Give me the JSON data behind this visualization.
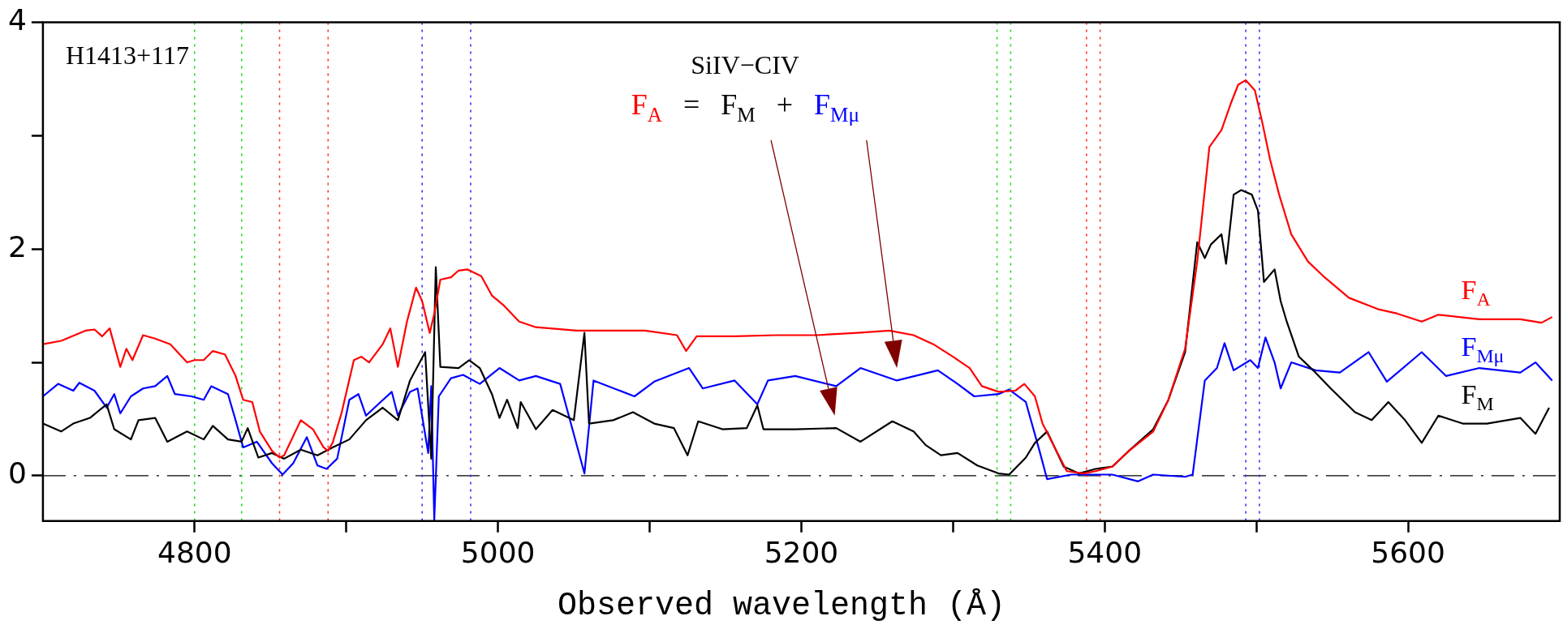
{
  "chart_data": {
    "type": "line",
    "xlabel": "Observed wavelength (Å)",
    "xlim": [
      4700,
      5700
    ],
    "ylim": [
      -0.4,
      4
    ],
    "xticks": [
      4800,
      {
        "value": 4900,
        "label": null
      },
      5000,
      {
        "value": 5100,
        "label": null
      },
      5200,
      {
        "value": 5300,
        "label": null
      },
      5400,
      {
        "value": 5500,
        "label": null
      },
      5600
    ],
    "yticks": [
      0,
      {
        "value": 1,
        "label": null
      },
      2,
      {
        "value": 3,
        "label": null
      },
      4
    ],
    "marker": "none",
    "legend": false,
    "annotations": [
      "H1413+117",
      "SiIV−CIV",
      "F$_{A}$ = F$_{M}$ + F$_{Mμ}$"
    ],
    "ref_lines": [
      {
        "axis": "y",
        "value": 0,
        "color": "#000000",
        "line_style": "dashed"
      },
      {
        "axis": "x",
        "value": 4800,
        "color": "#22dd22",
        "line_style": "dotted"
      },
      {
        "axis": "x",
        "value": 4831,
        "color": "#22dd22",
        "line_style": "dotted"
      },
      {
        "axis": "x",
        "value": 4856,
        "color": "#ff3333",
        "line_style": "dotted"
      },
      {
        "axis": "x",
        "value": 4888,
        "color": "#ff3333",
        "line_style": "dotted"
      },
      {
        "axis": "x",
        "value": 4950,
        "color": "#3333ff",
        "line_style": "dotted"
      },
      {
        "axis": "x",
        "value": 4982,
        "color": "#3333ff",
        "line_style": "dotted"
      },
      {
        "axis": "x",
        "value": 5329,
        "color": "#22dd22",
        "line_style": "dotted"
      },
      {
        "axis": "x",
        "value": 5338,
        "color": "#22dd22",
        "line_style": "dotted"
      },
      {
        "axis": "x",
        "value": 5388,
        "color": "#ff3333",
        "line_style": "dotted"
      },
      {
        "axis": "x",
        "value": 5397,
        "color": "#ff3333",
        "line_style": "dotted"
      },
      {
        "axis": "x",
        "value": 5493,
        "color": "#3333ff",
        "line_style": "dotted"
      },
      {
        "axis": "x",
        "value": 5502,
        "color": "#3333ff",
        "line_style": "dotted"
      }
    ],
    "series": [
      {
        "name": "F$_{A}$",
        "color": "#ff0000",
        "x": [
          4700,
          4712,
          4728,
          4734,
          4739,
          4744,
          4751,
          4755,
          4759,
          4766,
          4774,
          4784,
          4795,
          4800,
          4806,
          4812,
          4820,
          4827,
          4832,
          4838,
          4843,
          4851,
          4856,
          4859,
          4870,
          4878,
          4885,
          4888,
          4891,
          4897,
          4905,
          4910,
          4915,
          4924,
          4929,
          4934,
          4940,
          4946,
          4950,
          4955,
          4958,
          4962,
          4969,
          4974,
          4980,
          4989,
          4996,
          5004,
          5014,
          5025,
          5052,
          5076,
          5097,
          5118,
          5124,
          5131,
          5156,
          5183,
          5210,
          5237,
          5258,
          5274,
          5287,
          5300,
          5311,
          5319,
          5330,
          5341,
          5347,
          5354,
          5359,
          5367,
          5375,
          5386,
          5394,
          5405,
          5416,
          5432,
          5442,
          5453,
          5461,
          5469,
          5477,
          5483,
          5488,
          5493,
          5499,
          5504,
          5509,
          5515,
          5523,
          5534,
          5545,
          5561,
          5580,
          5593,
          5609,
          5620,
          5647,
          5674,
          5688,
          5695
        ],
        "values": [
          1.16,
          1.19,
          1.28,
          1.29,
          1.23,
          1.3,
          0.96,
          1.12,
          1.02,
          1.24,
          1.21,
          1.16,
          1.0,
          1.02,
          1.02,
          1.1,
          1.07,
          0.88,
          0.67,
          0.65,
          0.39,
          0.22,
          0.16,
          0.18,
          0.49,
          0.41,
          0.25,
          0.22,
          0.29,
          0.56,
          1.02,
          1.05,
          1.0,
          1.16,
          1.3,
          0.96,
          1.36,
          1.66,
          1.54,
          1.26,
          1.43,
          1.73,
          1.75,
          1.81,
          1.82,
          1.76,
          1.59,
          1.5,
          1.36,
          1.31,
          1.28,
          1.28,
          1.28,
          1.24,
          1.1,
          1.23,
          1.23,
          1.24,
          1.24,
          1.26,
          1.28,
          1.24,
          1.16,
          1.05,
          0.95,
          0.79,
          0.74,
          0.75,
          0.81,
          0.7,
          0.46,
          0.25,
          0.04,
          0.02,
          0.04,
          0.08,
          0.22,
          0.39,
          0.67,
          1.12,
          1.89,
          2.9,
          3.05,
          3.28,
          3.45,
          3.49,
          3.4,
          3.11,
          2.79,
          2.48,
          2.13,
          1.89,
          1.75,
          1.57,
          1.47,
          1.43,
          1.36,
          1.42,
          1.38,
          1.38,
          1.35,
          1.4
        ]
      },
      {
        "name": "F$_{M}$",
        "color": "#000000",
        "x": [
          4700,
          4712,
          4720,
          4731,
          4742,
          4747,
          4758,
          4763,
          4774,
          4782,
          4795,
          4806,
          4812,
          4822,
          4831,
          4835,
          4842,
          4851,
          4859,
          4870,
          4881,
          4891,
          4902,
          4913,
          4924,
          4934,
          4942,
          4952,
          4956,
          4959,
          4962,
          4974,
          4981,
          4988,
          4996,
          5001,
          5006,
          5013,
          5015,
          5025,
          5036,
          5050,
          5057,
          5060,
          5076,
          5089,
          5103,
          5116,
          5125,
          5132,
          5148,
          5164,
          5171,
          5175,
          5196,
          5223,
          5239,
          5260,
          5274,
          5282,
          5292,
          5303,
          5316,
          5330,
          5337,
          5348,
          5354,
          5362,
          5373,
          5383,
          5394,
          5405,
          5416,
          5432,
          5442,
          5453,
          5461,
          5466,
          5470,
          5477,
          5480,
          5485,
          5490,
          5497,
          5501,
          5505,
          5512,
          5516,
          5520,
          5528,
          5539,
          5549,
          5565,
          5576,
          5587,
          5598,
          5609,
          5620,
          5636,
          5652,
          5674,
          5684,
          5693
        ],
        "values": [
          0.46,
          0.39,
          0.46,
          0.51,
          0.63,
          0.41,
          0.32,
          0.49,
          0.51,
          0.3,
          0.39,
          0.32,
          0.44,
          0.32,
          0.3,
          0.42,
          0.16,
          0.2,
          0.15,
          0.23,
          0.18,
          0.25,
          0.32,
          0.49,
          0.6,
          0.49,
          0.84,
          1.09,
          0.15,
          1.84,
          0.96,
          0.95,
          1.02,
          0.95,
          0.72,
          0.51,
          0.67,
          0.42,
          0.65,
          0.41,
          0.58,
          0.49,
          1.26,
          0.46,
          0.49,
          0.56,
          0.46,
          0.42,
          0.18,
          0.48,
          0.41,
          0.42,
          0.62,
          0.41,
          0.41,
          0.42,
          0.3,
          0.48,
          0.39,
          0.27,
          0.18,
          0.2,
          0.09,
          0.02,
          0.01,
          0.16,
          0.29,
          0.39,
          0.08,
          0.02,
          0.06,
          0.08,
          0.22,
          0.41,
          0.67,
          1.09,
          2.06,
          1.92,
          2.04,
          2.13,
          1.87,
          2.48,
          2.52,
          2.48,
          2.34,
          1.71,
          1.82,
          1.54,
          1.36,
          1.05,
          0.91,
          0.77,
          0.56,
          0.49,
          0.65,
          0.49,
          0.29,
          0.53,
          0.46,
          0.46,
          0.51,
          0.37,
          0.6
        ]
      },
      {
        "name": "F$_{Mμ}$",
        "color": "#0000ff",
        "x": [
          4700,
          4710,
          4720,
          4724,
          4734,
          4742,
          4747,
          4751,
          4758,
          4766,
          4774,
          4782,
          4787,
          4798,
          4806,
          4811,
          4822,
          4827,
          4832,
          4841,
          4851,
          4858,
          4865,
          4874,
          4881,
          4887,
          4894,
          4902,
          4908,
          4913,
          4921,
          4930,
          4934,
          4942,
          4947,
          4954,
          4956,
          4958,
          4961,
          4969,
          4977,
          4988,
          5001,
          5014,
          5025,
          5041,
          5057,
          5063,
          5090,
          5103,
          5126,
          5135,
          5156,
          5171,
          5178,
          5196,
          5223,
          5239,
          5263,
          5290,
          5303,
          5314,
          5330,
          5337,
          5348,
          5357,
          5362,
          5378,
          5405,
          5422,
          5432,
          5453,
          5458,
          5466,
          5474,
          5479,
          5485,
          5496,
          5501,
          5506,
          5512,
          5516,
          5523,
          5539,
          5555,
          5574,
          5586,
          5609,
          5625,
          5647,
          5674,
          5684,
          5695
        ],
        "values": [
          0.7,
          0.81,
          0.75,
          0.82,
          0.75,
          0.6,
          0.72,
          0.55,
          0.7,
          0.77,
          0.79,
          0.88,
          0.72,
          0.7,
          0.67,
          0.79,
          0.72,
          0.49,
          0.25,
          0.3,
          0.11,
          0.01,
          0.11,
          0.34,
          0.09,
          0.06,
          0.15,
          0.67,
          0.72,
          0.53,
          0.63,
          0.74,
          0.53,
          0.74,
          0.77,
          0.2,
          0.79,
          -0.39,
          0.7,
          0.86,
          0.89,
          0.81,
          0.95,
          0.84,
          0.88,
          0.81,
          0.02,
          0.84,
          0.7,
          0.83,
          0.95,
          0.77,
          0.84,
          0.63,
          0.84,
          0.88,
          0.79,
          0.95,
          0.84,
          0.93,
          0.81,
          0.7,
          0.72,
          0.76,
          0.65,
          0.22,
          -0.03,
          0.01,
          0.01,
          -0.05,
          0.01,
          -0.01,
          0.01,
          0.84,
          0.95,
          1.17,
          0.93,
          1.02,
          0.95,
          1.22,
          1.0,
          0.77,
          1.0,
          0.93,
          0.91,
          1.09,
          0.83,
          1.09,
          0.88,
          0.95,
          0.91,
          1.0,
          0.84
        ]
      }
    ]
  }
}
